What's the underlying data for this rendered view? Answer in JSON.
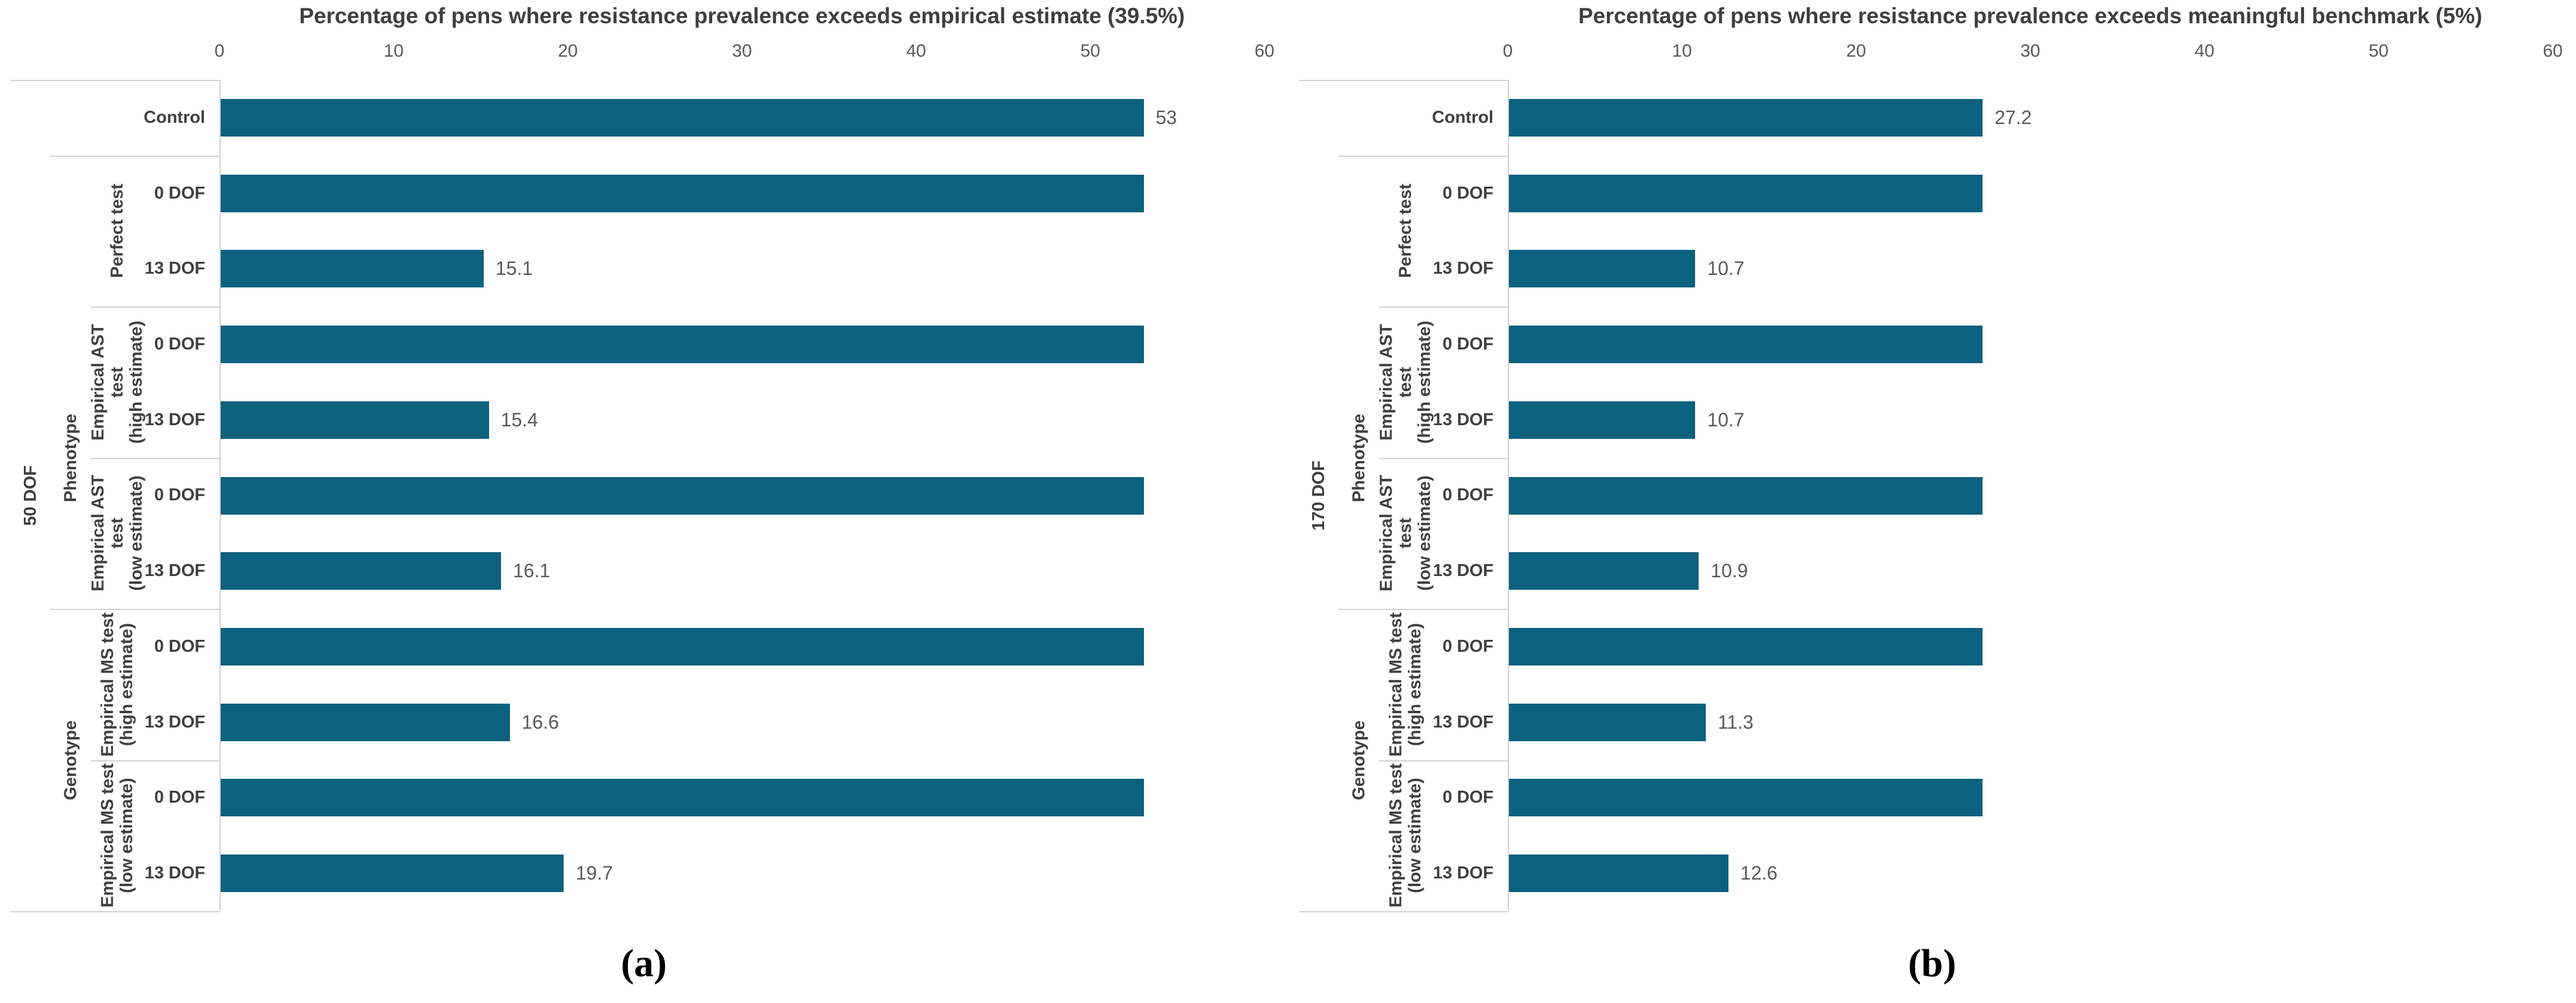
{
  "chart_data": [
    {
      "type": "bar",
      "orientation": "horizontal",
      "title": "Percentage of pens where resistance prevalence exceeds empirical estimate (39.5%)",
      "caption": "(a)",
      "row_axis_outer_label": "50 DOF",
      "xlim": [
        0,
        60
      ],
      "xticks": [
        0,
        10,
        20,
        30,
        40,
        50,
        60
      ],
      "bar_color": "#0C617E",
      "grid": "off",
      "legend": "none",
      "rows": [
        {
          "group": "",
          "test": "",
          "dof": "Control",
          "value": 53,
          "label": "53"
        },
        {
          "group": "",
          "test": "Perfect test",
          "dof": "0 DOF",
          "value": 53,
          "label": ""
        },
        {
          "group": "",
          "test": "Perfect test",
          "dof": "13 DOF",
          "value": 15.1,
          "label": "15.1"
        },
        {
          "group": "Phenotype",
          "test": "Empirical AST test\n(high estimate)",
          "dof": "0 DOF",
          "value": 53,
          "label": ""
        },
        {
          "group": "Phenotype",
          "test": "Empirical AST test\n(high estimate)",
          "dof": "13 DOF",
          "value": 15.4,
          "label": "15.4"
        },
        {
          "group": "Phenotype",
          "test": "Empirical AST test\n(low estimate)",
          "dof": "0 DOF",
          "value": 53,
          "label": ""
        },
        {
          "group": "Phenotype",
          "test": "Empirical AST test\n(low estimate)",
          "dof": "13 DOF",
          "value": 16.1,
          "label": "16.1"
        },
        {
          "group": "Genotype",
          "test": "Empirical MS test\n(high estimate)",
          "dof": "0 DOF",
          "value": 53,
          "label": ""
        },
        {
          "group": "Genotype",
          "test": "Empirical MS test\n(high estimate)",
          "dof": "13 DOF",
          "value": 16.6,
          "label": "16.6"
        },
        {
          "group": "Genotype",
          "test": "Empirical MS test\n(low estimate)",
          "dof": "0 DOF",
          "value": 53,
          "label": ""
        },
        {
          "group": "Genotype",
          "test": "Empirical MS test\n(low estimate)",
          "dof": "13 DOF",
          "value": 19.7,
          "label": "19.7"
        }
      ]
    },
    {
      "type": "bar",
      "orientation": "horizontal",
      "title": "Percentage of pens where resistance prevalence exceeds meaningful benchmark (5%)",
      "caption": "(b)",
      "row_axis_outer_label": "170 DOF",
      "xlim": [
        0,
        60
      ],
      "xticks": [
        0,
        10,
        20,
        30,
        40,
        50,
        60
      ],
      "bar_color": "#0C617E",
      "grid": "off",
      "legend": "none",
      "rows": [
        {
          "group": "",
          "test": "",
          "dof": "Control",
          "value": 27.2,
          "label": "27.2"
        },
        {
          "group": "",
          "test": "Perfect test",
          "dof": "0 DOF",
          "value": 27.2,
          "label": ""
        },
        {
          "group": "",
          "test": "Perfect test",
          "dof": "13 DOF",
          "value": 10.7,
          "label": "10.7"
        },
        {
          "group": "Phenotype",
          "test": "Empirical AST test\n(high estimate)",
          "dof": "0 DOF",
          "value": 27.2,
          "label": ""
        },
        {
          "group": "Phenotype",
          "test": "Empirical AST test\n(high estimate)",
          "dof": "13 DOF",
          "value": 10.7,
          "label": "10.7"
        },
        {
          "group": "Phenotype",
          "test": "Empirical AST test\n(low estimate)",
          "dof": "0 DOF",
          "value": 27.2,
          "label": ""
        },
        {
          "group": "Phenotype",
          "test": "Empirical AST test\n(low estimate)",
          "dof": "13 DOF",
          "value": 10.9,
          "label": "10.9"
        },
        {
          "group": "Genotype",
          "test": "Empirical MS test\n(high estimate)",
          "dof": "0 DOF",
          "value": 27.2,
          "label": ""
        },
        {
          "group": "Genotype",
          "test": "Empirical MS test\n(high estimate)",
          "dof": "13 DOF",
          "value": 11.3,
          "label": "11.3"
        },
        {
          "group": "Genotype",
          "test": "Empirical MS test\n(low estimate)",
          "dof": "0 DOF",
          "value": 27.2,
          "label": ""
        },
        {
          "group": "Genotype",
          "test": "Empirical MS test\n(low estimate)",
          "dof": "13 DOF",
          "value": 12.6,
          "label": "12.6"
        }
      ]
    }
  ],
  "line_color": "#d2d2d2",
  "tick_label_color": "#595959",
  "category_label_color": "#3f3f3f"
}
